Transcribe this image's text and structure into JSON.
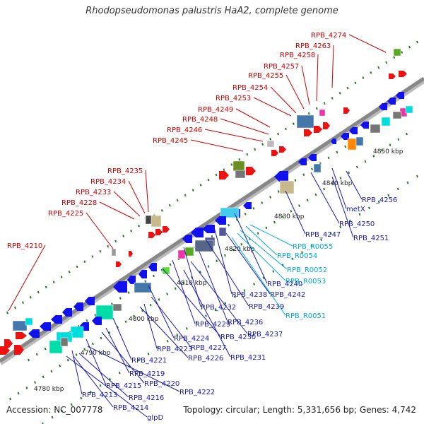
{
  "title": "Rhodopseudomonas palustris HaA2, complete genome",
  "footer": {
    "accession": "Accession: NC_007778",
    "summary": "Topology: circular; Length: 5,331,656 bp; Genes: 4,742"
  },
  "colors": {
    "forward_label": "#cc0000",
    "reverse_label": "#1a1aaa",
    "rna_label": "#00aadd",
    "backbone": "#888888",
    "forward_gene": "#ee1111",
    "reverse_gene": "#1111ee",
    "tick": "#2a7a2a"
  },
  "scale_marks": [
    {
      "label": "4780 kbp",
      "kbp": 4780
    },
    {
      "label": "4790 kbp",
      "kbp": 4790
    },
    {
      "label": "4800 kbp",
      "kbp": 4800
    },
    {
      "label": "4810 kbp",
      "kbp": 4810
    },
    {
      "label": "4820 kbp",
      "kbp": 4820
    },
    {
      "label": "4830 kbp",
      "kbp": 4830
    },
    {
      "label": "4840 kbp",
      "kbp": 4840
    },
    {
      "label": "4850 kbp",
      "kbp": 4850
    }
  ],
  "forward_labels": [
    "RPB_4274",
    "RPB_4263",
    "RPB_4258",
    "RPB_4257",
    "RPB_4255",
    "RPB_4254",
    "RPB_4253",
    "RPB_4249",
    "RPB_4248",
    "RPB_4246",
    "RPB_4245",
    "RPB_4235",
    "RPB_4234",
    "RPB_4233",
    "RPB_4228",
    "RPB_4225",
    "RPB_4210"
  ],
  "reverse_labels": [
    "RPB_4256",
    "metX",
    "RPB_4250",
    "RPB_4251",
    "RPB_4247",
    "RPB_4240",
    "RPB_4238",
    "RPB_4242",
    "RPB_4239",
    "RPB_4232",
    "RPB_4236",
    "RPB_4229",
    "RPB_4237",
    "RPB_4230",
    "RPB_4231",
    "RPB_4224",
    "RPB_4227",
    "RPB_4223",
    "RPB_4226",
    "RPB_4221",
    "RPB_4219",
    "RPB_4220",
    "RPB_4215",
    "RPB_4222",
    "RPB_4213",
    "RPB_4216",
    "RPB_4214",
    "glpD"
  ],
  "rna_labels": [
    "RPB_R0055",
    "RPB_R0054",
    "RPB_R0052",
    "RPB_R0053",
    "RPB_R0051"
  ]
}
